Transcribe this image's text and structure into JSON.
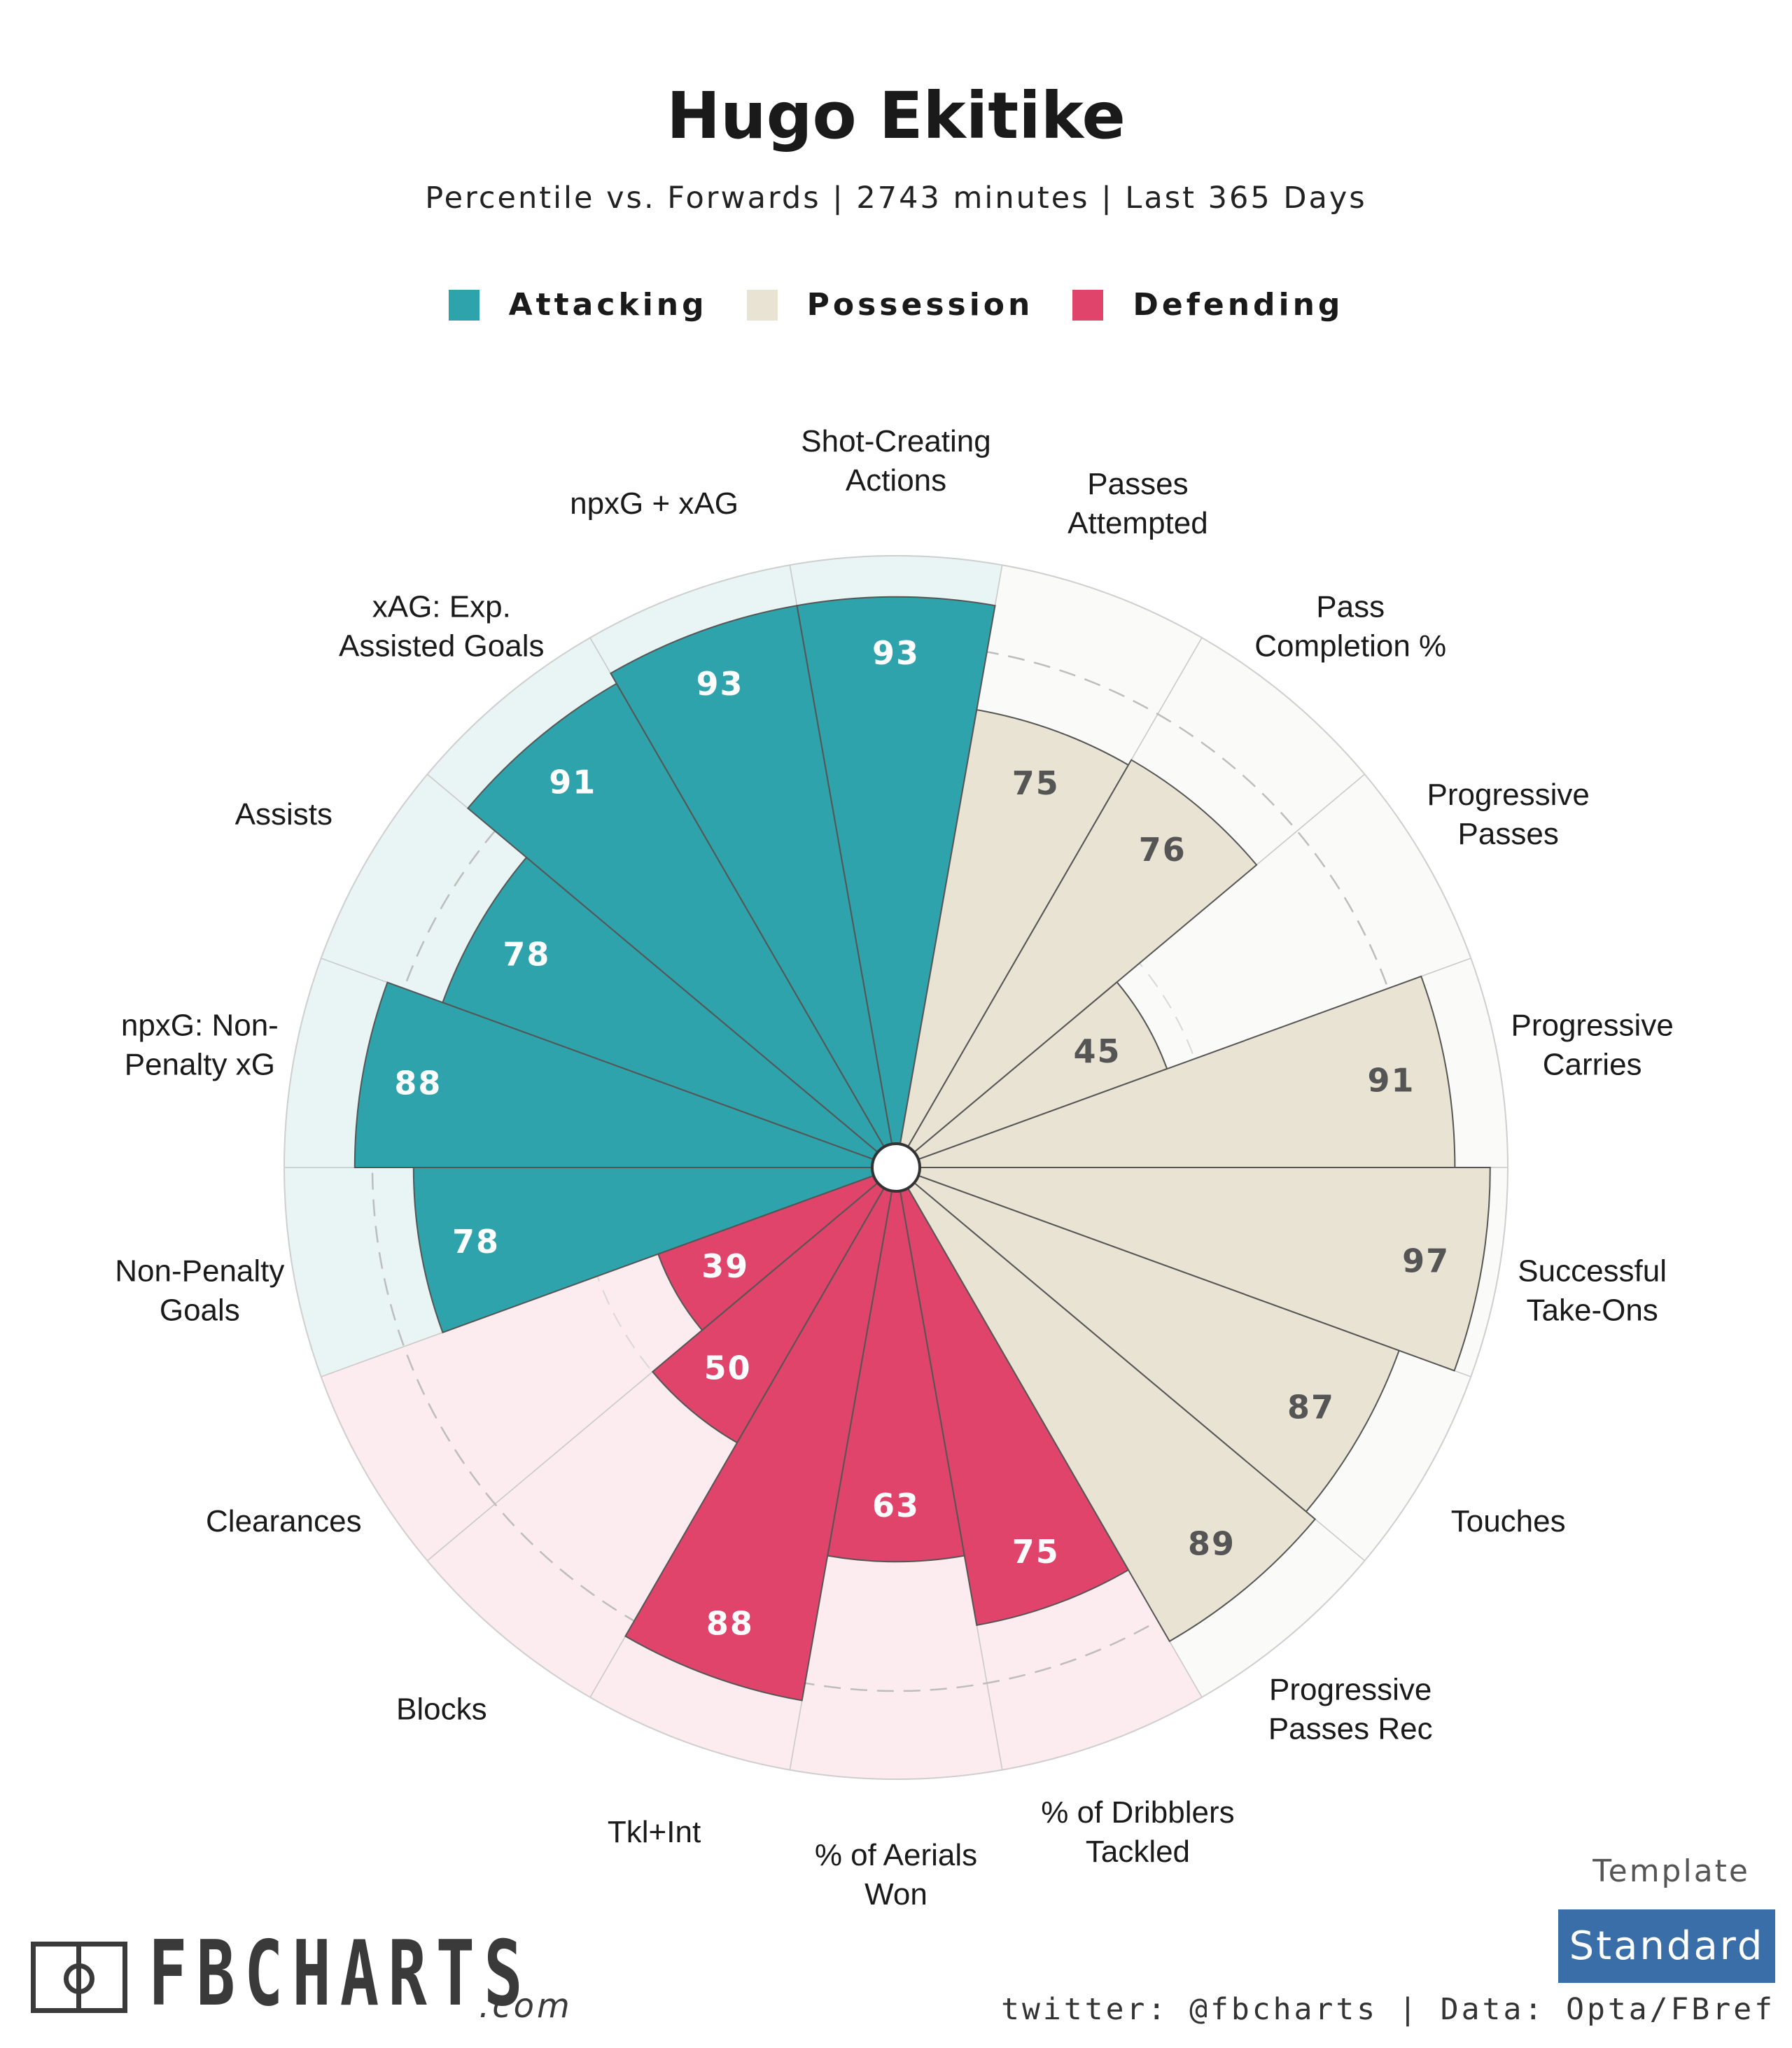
{
  "header": {
    "title": "Hugo Ekitike",
    "subtitle": "Percentile vs. Forwards | 2743 minutes | Last 365 Days"
  },
  "legend": [
    {
      "label": "Attacking",
      "color": "#2ea3ab"
    },
    {
      "label": "Possession",
      "color": "#e8e3d3"
    },
    {
      "label": "Defending",
      "color": "#e0446a"
    }
  ],
  "chart_data": {
    "type": "polar-bar",
    "scale": [
      0,
      100
    ],
    "reference_ring": 50,
    "dashed_ring": 85,
    "group_colors": {
      "Attacking": {
        "bar": "#2ea3ab",
        "bg": "#e9f4f4",
        "text": "#ffffff"
      },
      "Possession": {
        "bar": "#e8e3d3",
        "bg": "#fafaf8",
        "text": "#555555"
      },
      "Defending": {
        "bar": "#e0446a",
        "bg": "#fcebef",
        "text": "#ffffff"
      }
    },
    "metrics": [
      {
        "label": "Shot-Creating Actions",
        "lines": [
          "Shot-Creating",
          "Actions"
        ],
        "value": 93,
        "group": "Attacking"
      },
      {
        "label": "Passes Attempted",
        "lines": [
          "Passes",
          "Attempted"
        ],
        "value": 75,
        "group": "Possession"
      },
      {
        "label": "Pass Completion %",
        "lines": [
          "Pass",
          "Completion %"
        ],
        "value": 76,
        "group": "Possession"
      },
      {
        "label": "Progressive Passes",
        "lines": [
          "Progressive",
          "Passes"
        ],
        "value": 45,
        "group": "Possession"
      },
      {
        "label": "Progressive Carries",
        "lines": [
          "Progressive",
          "Carries"
        ],
        "value": 91,
        "group": "Possession"
      },
      {
        "label": "Successful Take-Ons",
        "lines": [
          "Successful",
          "Take-Ons"
        ],
        "value": 97,
        "group": "Possession"
      },
      {
        "label": "Touches",
        "lines": [
          "Touches"
        ],
        "value": 87,
        "group": "Possession"
      },
      {
        "label": "Progressive Passes Rec",
        "lines": [
          "Progressive",
          "Passes Rec"
        ],
        "value": 89,
        "group": "Possession"
      },
      {
        "label": "% of Dribblers Tackled",
        "lines": [
          "% of Dribblers",
          "Tackled"
        ],
        "value": 75,
        "group": "Defending"
      },
      {
        "label": "% of Aerials Won",
        "lines": [
          "% of Aerials",
          "Won"
        ],
        "value": 63,
        "group": "Defending"
      },
      {
        "label": "Tkl+Int",
        "lines": [
          "Tkl+Int"
        ],
        "value": 88,
        "group": "Defending"
      },
      {
        "label": "Blocks",
        "lines": [
          "Blocks"
        ],
        "value": 50,
        "group": "Defending"
      },
      {
        "label": "Clearances",
        "lines": [
          "Clearances"
        ],
        "value": 39,
        "group": "Defending"
      },
      {
        "label": "Non-Penalty Goals",
        "lines": [
          "Non-Penalty",
          "Goals"
        ],
        "value": 78,
        "group": "Attacking"
      },
      {
        "label": "npxG: Non-Penalty xG",
        "lines": [
          "npxG: Non-",
          "Penalty xG"
        ],
        "value": 88,
        "group": "Attacking"
      },
      {
        "label": "Assists",
        "lines": [
          "Assists"
        ],
        "value": 78,
        "group": "Attacking"
      },
      {
        "label": "xAG: Exp. Assisted Goals",
        "lines": [
          "xAG: Exp.",
          "Assisted Goals"
        ],
        "value": 91,
        "group": "Attacking"
      },
      {
        "label": "npxG + xAG",
        "lines": [
          "npxG + xAG"
        ],
        "value": 93,
        "group": "Attacking"
      }
    ]
  },
  "footer": {
    "template_label": "Template",
    "template_value": "Standard",
    "credits": "twitter: @fbcharts | Data: Opta/FBref",
    "logo_text": "FBCHARTS",
    "logo_suffix": ".com"
  }
}
